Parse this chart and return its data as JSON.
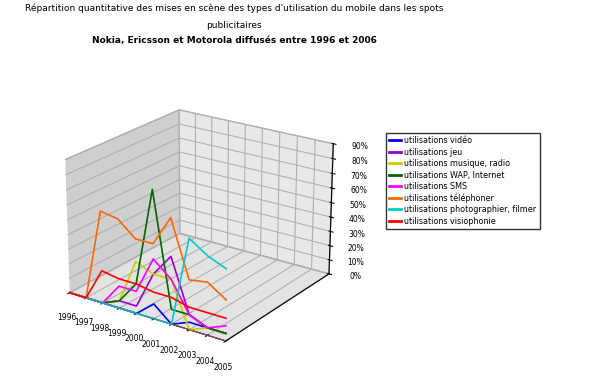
{
  "title_line1": "Répartition quantitative des mises en scène des types d'utilisation du mobile dans les spots",
  "title_line2": "publicitaires",
  "title_line3": "Nokia, Ericsson et Motorola diffusés entre 1996 et 2006",
  "years": [
    1996,
    1997,
    1998,
    1999,
    2000,
    2001,
    2002,
    2003,
    2004,
    2005
  ],
  "series": [
    {
      "label": "utilisations vidéo",
      "color": "#0000FF",
      "values": [
        0,
        0,
        0,
        0,
        0,
        10,
        0,
        5,
        5,
        5
      ]
    },
    {
      "label": "utilisations jeu",
      "color": "#9900CC",
      "values": [
        0,
        0,
        0,
        5,
        5,
        30,
        45,
        10,
        5,
        5
      ]
    },
    {
      "label": "utilisations musique, radio",
      "color": "#CCCC00",
      "values": [
        0,
        0,
        0,
        5,
        35,
        30,
        30,
        0,
        5,
        5
      ]
    },
    {
      "label": "utilisations WAP, Internet",
      "color": "#006600",
      "values": [
        0,
        0,
        0,
        5,
        20,
        85,
        10,
        10,
        5,
        5
      ]
    },
    {
      "label": "utilisations SMS",
      "color": "#FF00FF",
      "values": [
        0,
        0,
        0,
        15,
        15,
        40,
        30,
        10,
        5,
        10
      ]
    },
    {
      "label": "utilisations téléphoner",
      "color": "#FF6600",
      "values": [
        0,
        0,
        62,
        60,
        50,
        50,
        70,
        33,
        35,
        27
      ]
    },
    {
      "label": "utilisations photographier, filmer",
      "color": "#00CCCC",
      "values": [
        0,
        0,
        0,
        0,
        0,
        0,
        0,
        60,
        52,
        47
      ]
    },
    {
      "label": "utilisations visiophonie",
      "color": "#FF0000",
      "values": [
        0,
        0,
        22,
        20,
        20,
        18,
        18,
        15,
        15,
        15
      ]
    }
  ],
  "ylim": [
    0,
    90
  ],
  "yticks": [
    0,
    10,
    20,
    30,
    40,
    50,
    60,
    70,
    80,
    90
  ],
  "ytick_labels": [
    "0%",
    "10%",
    "20%",
    "30%",
    "40%",
    "50%",
    "60%",
    "70%",
    "80%",
    "90%"
  ],
  "figure_bg": "#FFFFFF",
  "pane_color_left": "#C8C8C8",
  "pane_color_back": "#D3D3D3",
  "pane_color_floor": "#A0A0A0",
  "elev": 22,
  "azim": -55
}
